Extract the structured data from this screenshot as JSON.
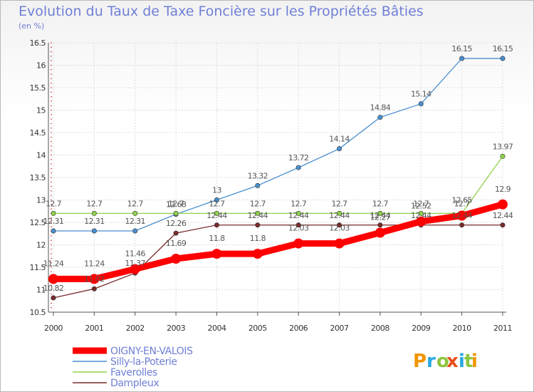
{
  "chart_data": {
    "type": "line",
    "title": "Evolution du Taux de Taxe Foncière sur les Propriétés Bâties",
    "subtitle": "(en %)",
    "x": [
      "2000",
      "2001",
      "2002",
      "2003",
      "2004",
      "2005",
      "2006",
      "2007",
      "2008",
      "2009",
      "2010",
      "2011"
    ],
    "ylim": [
      10.5,
      16.5
    ],
    "yticks": [
      10.5,
      11,
      11.5,
      12,
      12.5,
      13,
      13.5,
      14,
      14.5,
      15,
      15.5,
      16,
      16.5
    ],
    "grid": true,
    "legend_position": "bottom-left",
    "series": [
      {
        "name": "OIGNY-EN-VALOIS",
        "color": "#ff0000",
        "values": [
          11.24,
          11.24,
          11.46,
          11.69,
          11.8,
          11.8,
          12.03,
          12.03,
          12.27,
          12.52,
          12.65,
          12.9
        ],
        "labels": [
          "11.24",
          "11.24",
          "11.46",
          "11.69",
          "11.8",
          "11.8",
          "12.03",
          "12.03",
          "12.27",
          "12.52",
          "12.65",
          "12.9"
        ]
      },
      {
        "name": "Silly-la-Poterie",
        "color": "#4a8fd0",
        "values": [
          12.31,
          12.31,
          12.31,
          12.68,
          13,
          13.32,
          13.72,
          14.14,
          14.84,
          15.14,
          16.15,
          16.15
        ],
        "labels": [
          "12.31",
          "12.31",
          "12.31",
          "12.68",
          "13",
          "13.32",
          "13.72",
          "14.14",
          "14.84",
          "15.14",
          "16.15",
          "16.15"
        ]
      },
      {
        "name": "Faverolles",
        "color": "#8dd24a",
        "values": [
          12.7,
          12.7,
          12.7,
          12.7,
          12.7,
          12.7,
          12.7,
          12.7,
          12.7,
          12.7,
          12.7,
          13.97
        ],
        "labels": [
          "12.7",
          "12.7",
          "12.7",
          "12.7",
          "12.7",
          "12.7",
          "12.7",
          "12.7",
          "12.7",
          "12.7",
          "12.7",
          "13.97"
        ]
      },
      {
        "name": "Dampleux",
        "color": "#7a2a2a",
        "values": [
          10.82,
          11.02,
          11.37,
          12.26,
          12.44,
          12.44,
          12.44,
          12.44,
          12.44,
          12.44,
          12.44,
          12.44
        ],
        "labels": [
          "10.82",
          "11.02",
          "11.37",
          "12.26",
          "12.44",
          "12.44",
          "12.44",
          "12.44",
          "12.44",
          "12.44",
          "12.44",
          "12.44"
        ]
      }
    ]
  },
  "logo": {
    "text": "Proxiti",
    "letter_colors": [
      "#f29400",
      "#29a8e0",
      "#8cc63f",
      "#e94e1b",
      "#29a8e0",
      "#8cc63f",
      "#f29400"
    ]
  }
}
